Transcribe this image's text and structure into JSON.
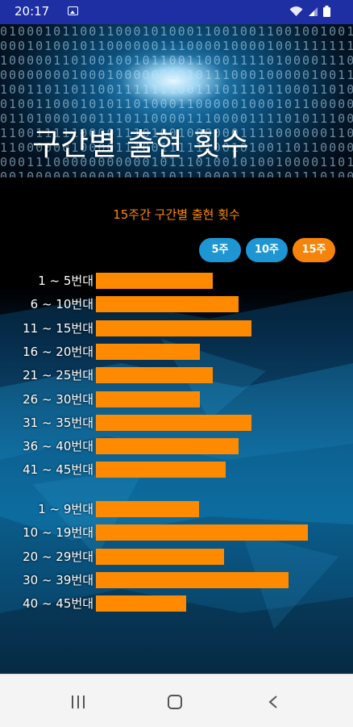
{
  "status_bar": {
    "time": "20:17",
    "icons": [
      "image-icon",
      "wifi-icon",
      "signal-icon",
      "battery-icon"
    ]
  },
  "header": {
    "title": "구간별 출현 횟수"
  },
  "section": {
    "title": "15주간 구간별 출현 횟수"
  },
  "period_buttons": [
    {
      "label": "5주",
      "selected": false
    },
    {
      "label": "10주",
      "selected": false
    },
    {
      "label": "15주",
      "selected": true
    }
  ],
  "colors": {
    "bar": "#ff8a00",
    "button_default": "#1e96d3",
    "button_selected": "#f7840a",
    "status_bar": "#1d2fa3"
  },
  "chart_data": [
    {
      "type": "bar",
      "orientation": "horizontal",
      "categories": [
        "1 ~ 5번대",
        "6 ~ 10번대",
        "11 ~ 15번대",
        "16 ~ 20번대",
        "21 ~ 25번대",
        "26 ~ 30번대",
        "31 ~ 35번대",
        "36 ~ 40번대",
        "41 ~ 45번대"
      ],
      "values": [
        9,
        11,
        12,
        8,
        9,
        8,
        12,
        11,
        10
      ],
      "title": "",
      "xlabel": "",
      "ylabel": "",
      "grid": false
    },
    {
      "type": "bar",
      "orientation": "horizontal",
      "categories": [
        "1 ~ 9번대",
        "10 ~ 19번대",
        "20 ~ 29번대",
        "30 ~ 39번대",
        "40 ~ 45번대"
      ],
      "values": [
        16,
        33,
        20,
        30,
        14
      ],
      "title": "",
      "xlabel": "",
      "ylabel": "",
      "grid": false
    }
  ],
  "nav_bar": {
    "buttons": [
      "recent-apps-icon",
      "home-icon",
      "back-icon"
    ]
  }
}
